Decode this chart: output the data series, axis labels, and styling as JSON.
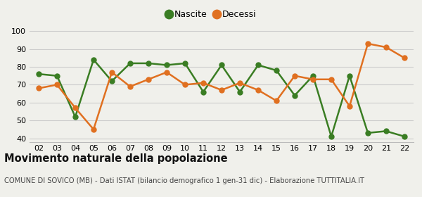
{
  "years": [
    "02",
    "03",
    "04",
    "05",
    "06",
    "07",
    "08",
    "09",
    "10",
    "11",
    "12",
    "13",
    "14",
    "15",
    "16",
    "17",
    "18",
    "19",
    "20",
    "21",
    "22"
  ],
  "nascite": [
    76,
    75,
    52,
    84,
    72,
    82,
    82,
    81,
    82,
    66,
    81,
    66,
    81,
    78,
    64,
    75,
    41,
    75,
    43,
    44,
    41
  ],
  "decessi": [
    68,
    70,
    57,
    45,
    77,
    69,
    73,
    77,
    70,
    71,
    67,
    71,
    67,
    61,
    75,
    73,
    73,
    58,
    93,
    91,
    85
  ],
  "nascite_color": "#3a7d23",
  "decessi_color": "#e07020",
  "background_color": "#f0f0eb",
  "grid_color": "#cccccc",
  "title": "Movimento naturale della popolazione",
  "subtitle": "COMUNE DI SOVICO (MB) - Dati ISTAT (bilancio demografico 1 gen-31 dic) - Elaborazione TUTTITALIA.IT",
  "legend_nascite": "Nascite",
  "legend_decessi": "Decessi",
  "ylim": [
    38,
    102
  ],
  "yticks": [
    40,
    50,
    60,
    70,
    80,
    90,
    100
  ],
  "marker_size": 5,
  "line_width": 1.8,
  "title_fontsize": 10.5,
  "subtitle_fontsize": 7.2,
  "tick_fontsize": 8,
  "legend_fontsize": 9
}
